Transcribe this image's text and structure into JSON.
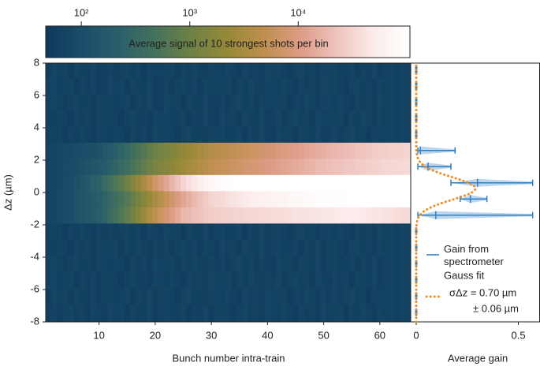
{
  "chart_data": [
    {
      "type": "heatmap",
      "xlabel": "Bunch number intra-train",
      "ylabel": "Δz (µm)",
      "x": [
        1,
        2,
        3,
        4,
        5,
        6,
        7,
        8,
        9,
        10,
        11,
        12,
        13,
        14,
        15,
        16,
        17,
        18,
        19,
        20,
        21,
        22,
        23,
        24,
        25,
        26,
        27,
        28,
        29,
        30,
        31,
        32,
        33,
        34,
        35,
        36,
        37,
        38,
        39,
        40,
        41,
        42,
        43,
        44,
        45,
        46,
        47,
        48,
        49,
        50,
        51,
        52,
        53,
        54,
        55,
        56,
        57,
        58,
        59,
        60,
        61,
        62,
        63,
        64,
        65
      ],
      "y_edges": [
        -8,
        -6.9,
        -5.9,
        -4.9,
        -3.9,
        -2.9,
        -1.9,
        -0.9,
        0.1,
        1.1,
        2.1,
        3.1,
        4.1,
        5.1,
        6.1,
        7.1,
        8
      ],
      "z": [
        [
          62,
          70,
          58,
          66,
          74,
          60,
          68,
          55,
          72,
          64,
          59,
          77,
          63,
          69,
          57,
          71,
          65,
          61,
          75,
          58,
          67,
          73,
          60,
          64,
          70,
          56,
          68,
          62,
          76,
          59,
          66,
          71,
          63,
          57,
          69,
          74,
          61,
          65,
          58,
          72,
          67,
          60,
          70,
          64,
          56,
          73,
          62,
          68,
          59,
          75,
          63,
          66,
          71,
          57,
          69,
          61,
          74,
          65,
          58,
          70,
          63,
          67,
          60,
          72,
          64
        ],
        [
          59,
          77,
          63,
          69,
          57,
          71,
          65,
          61,
          75,
          58,
          67,
          73,
          60,
          64,
          70,
          56,
          68,
          62,
          76,
          59,
          66,
          71,
          63,
          57,
          69,
          74,
          61,
          65,
          58,
          72,
          67,
          60,
          70,
          64,
          56,
          73,
          62,
          68,
          59,
          75,
          63,
          66,
          71,
          57,
          69,
          61,
          74,
          65,
          58,
          70,
          62,
          70,
          58,
          66,
          74,
          60,
          68,
          55,
          72,
          64,
          63,
          67,
          60,
          72,
          64
        ],
        [
          67,
          73,
          60,
          64,
          70,
          56,
          68,
          62,
          76,
          59,
          66,
          71,
          63,
          57,
          69,
          74,
          61,
          65,
          58,
          72,
          67,
          60,
          70,
          64,
          56,
          73,
          62,
          68,
          59,
          75,
          63,
          66,
          71,
          57,
          69,
          61,
          74,
          65,
          58,
          70,
          62,
          70,
          58,
          66,
          74,
          60,
          68,
          55,
          72,
          64,
          59,
          77,
          63,
          69,
          57,
          71,
          65,
          61,
          75,
          58,
          63,
          67,
          60,
          72,
          64
        ],
        [
          66,
          71,
          63,
          57,
          69,
          74,
          61,
          65,
          58,
          72,
          67,
          60,
          70,
          64,
          56,
          73,
          62,
          68,
          59,
          75,
          63,
          66,
          71,
          57,
          69,
          61,
          74,
          65,
          58,
          70,
          62,
          70,
          58,
          66,
          74,
          60,
          68,
          55,
          72,
          64,
          59,
          77,
          63,
          69,
          57,
          71,
          65,
          61,
          75,
          58,
          67,
          73,
          60,
          64,
          70,
          56,
          68,
          62,
          76,
          59,
          63,
          67,
          60,
          72,
          64
        ],
        [
          67,
          60,
          70,
          64,
          56,
          73,
          62,
          68,
          59,
          75,
          63,
          66,
          71,
          57,
          69,
          61,
          74,
          65,
          58,
          70,
          62,
          70,
          58,
          66,
          74,
          60,
          68,
          55,
          72,
          64,
          59,
          77,
          63,
          69,
          57,
          71,
          65,
          61,
          75,
          58,
          67,
          73,
          60,
          64,
          70,
          56,
          68,
          62,
          76,
          59,
          66,
          71,
          63,
          57,
          69,
          74,
          61,
          65,
          58,
          72,
          63,
          67,
          60,
          72,
          64
        ],
        [
          63,
          66,
          71,
          57,
          69,
          61,
          74,
          65,
          58,
          70,
          62,
          70,
          58,
          66,
          74,
          60,
          68,
          55,
          72,
          64,
          59,
          77,
          63,
          69,
          57,
          71,
          65,
          61,
          75,
          58,
          67,
          73,
          60,
          64,
          70,
          56,
          68,
          62,
          76,
          59,
          66,
          71,
          63,
          57,
          69,
          74,
          61,
          65,
          58,
          72,
          67,
          60,
          70,
          64,
          56,
          73,
          62,
          68,
          59,
          75,
          63,
          67,
          60,
          72,
          64
        ],
        [
          71,
          79,
          89,
          100,
          112,
          126,
          141,
          158,
          178,
          200,
          263,
          347,
          457,
          603,
          794,
          1150,
          1660,
          2400,
          3470,
          5010,
          6460,
          8320,
          10700,
          13800,
          17800,
          19500,
          21400,
          23400,
          25700,
          28200,
          28800,
          29500,
          30200,
          30900,
          31600,
          32400,
          33100,
          33900,
          34700,
          35500,
          36300,
          37200,
          38000,
          38900,
          39800,
          40700,
          41700,
          42700,
          43700,
          44700,
          45700,
          46800,
          47900,
          49000,
          50100,
          48400,
          46800,
          45200,
          43700,
          42200,
          40700,
          39400,
          38000,
          36700,
          35500
        ],
        [
          71,
          79,
          89,
          100,
          112,
          126,
          141,
          158,
          178,
          200,
          251,
          316,
          398,
          501,
          631,
          871,
          1200,
          1660,
          2290,
          3160,
          4170,
          5500,
          7240,
          9550,
          12600,
          15100,
          18200,
          21900,
          26300,
          31600,
          33900,
          36300,
          38900,
          41700,
          44700,
          47900,
          51300,
          55000,
          58900,
          63100,
          66100,
          69200,
          72400,
          75900,
          79400,
          83200,
          87100,
          91200,
          95500,
          100000,
          101000,
          102000,
          103000,
          104000,
          105000,
          106000,
          106000,
          107000,
          108000,
          109000,
          109000,
          110000,
          111000,
          111000,
          112000
        ],
        [
          71,
          77,
          84,
          92,
          100,
          120,
          145,
          174,
          209,
          251,
          331,
          437,
          575,
          759,
          1000,
          1480,
          2190,
          3240,
          4790,
          7080,
          9550,
          12900,
          17400,
          23400,
          31600,
          38000,
          45700,
          55000,
          66100,
          79400,
          85100,
          91200,
          97700,
          105000,
          112000,
          115000,
          117000,
          118000,
          119000,
          120000,
          121000,
          122000,
          123000,
          124000,
          125000,
          125000,
          126000,
          126000,
          125000,
          126000,
          127000,
          126000,
          125000,
          126000,
          127000,
          126000,
          125000,
          126000,
          126000,
          127000,
          126000,
          125000,
          126000,
          127000,
          126000
        ],
        [
          71,
          78,
          85,
          93,
          102,
          110,
          120,
          132,
          145,
          158,
          191,
          229,
          275,
          331,
          398,
          501,
          631,
          794,
          1000,
          1259,
          1450,
          1660,
          1910,
          2190,
          2510,
          2880,
          3310,
          3800,
          4370,
          5010,
          5370,
          5750,
          6170,
          6610,
          7080,
          7590,
          8130,
          8710,
          9330,
          10000,
          10700,
          11500,
          12300,
          13200,
          14100,
          15100,
          16200,
          17400,
          18600,
          20000,
          20900,
          21900,
          22900,
          24000,
          25100,
          26300,
          27500,
          28800,
          30200,
          31600,
          32400,
          33100,
          33900,
          34700,
          35500
        ],
        [
          71,
          76,
          81,
          85,
          91,
          98,
          105,
          110,
          117,
          126,
          151,
          182,
          219,
          263,
          316,
          398,
          501,
          631,
          794,
          1000,
          1150,
          1320,
          1510,
          1740,
          2000,
          2290,
          2630,
          3020,
          3470,
          3980,
          4270,
          4570,
          4900,
          5250,
          5620,
          6030,
          6460,
          6920,
          7410,
          7940,
          8510,
          9120,
          9770,
          10500,
          11200,
          12000,
          12900,
          13800,
          14800,
          15800,
          16800,
          17800,
          18800,
          20000,
          21100,
          22400,
          23700,
          25100,
          26600,
          28200,
          28800,
          29500,
          30200,
          30900,
          31600
        ],
        [
          63,
          66,
          71,
          57,
          69,
          61,
          74,
          65,
          58,
          70,
          67,
          60,
          70,
          64,
          56,
          73,
          62,
          68,
          59,
          75,
          66,
          71,
          63,
          57,
          69,
          74,
          61,
          65,
          58,
          72,
          67,
          73,
          60,
          64,
          70,
          56,
          68,
          62,
          76,
          59,
          59,
          77,
          63,
          69,
          57,
          71,
          65,
          61,
          75,
          58,
          62,
          70,
          58,
          66,
          74,
          60,
          68,
          55,
          72,
          64,
          63,
          67,
          60,
          72,
          64
        ],
        [
          67,
          60,
          70,
          64,
          56,
          73,
          62,
          68,
          59,
          75,
          66,
          71,
          63,
          57,
          69,
          74,
          61,
          65,
          58,
          72,
          67,
          73,
          60,
          64,
          70,
          56,
          68,
          62,
          76,
          59,
          59,
          77,
          63,
          69,
          57,
          71,
          65,
          61,
          75,
          58,
          62,
          70,
          58,
          66,
          74,
          60,
          68,
          55,
          72,
          64,
          63,
          66,
          71,
          57,
          69,
          61,
          74,
          65,
          58,
          70,
          63,
          67,
          60,
          72,
          64
        ],
        [
          66,
          71,
          63,
          57,
          69,
          74,
          61,
          65,
          58,
          72,
          67,
          73,
          60,
          64,
          70,
          56,
          68,
          62,
          76,
          59,
          59,
          77,
          63,
          69,
          57,
          71,
          65,
          61,
          75,
          58,
          62,
          70,
          58,
          66,
          74,
          60,
          68,
          55,
          72,
          64,
          63,
          66,
          71,
          57,
          69,
          61,
          74,
          65,
          58,
          70,
          67,
          60,
          70,
          64,
          56,
          73,
          62,
          68,
          59,
          75,
          63,
          67,
          60,
          72,
          64
        ],
        [
          67,
          73,
          60,
          64,
          70,
          56,
          68,
          62,
          76,
          59,
          59,
          77,
          63,
          69,
          57,
          71,
          65,
          61,
          75,
          58,
          62,
          70,
          58,
          66,
          74,
          60,
          68,
          55,
          72,
          64,
          63,
          66,
          71,
          57,
          69,
          61,
          74,
          65,
          58,
          70,
          67,
          60,
          70,
          64,
          56,
          73,
          62,
          68,
          59,
          75,
          66,
          71,
          63,
          57,
          69,
          74,
          61,
          65,
          58,
          72,
          63,
          67,
          60,
          72,
          64
        ],
        [
          59,
          77,
          63,
          69,
          57,
          71,
          65,
          61,
          75,
          58,
          62,
          70,
          58,
          66,
          74,
          60,
          68,
          55,
          72,
          64,
          63,
          66,
          71,
          57,
          69,
          61,
          74,
          65,
          58,
          70,
          67,
          60,
          70,
          64,
          56,
          73,
          62,
          68,
          59,
          75,
          66,
          71,
          63,
          57,
          69,
          74,
          61,
          65,
          58,
          72,
          67,
          73,
          60,
          64,
          70,
          56,
          68,
          62,
          76,
          59,
          63,
          67,
          60,
          72,
          64
        ]
      ],
      "xlim": [
        0.5,
        65.5
      ],
      "ylim": [
        -8,
        8
      ],
      "xticks": [
        10,
        20,
        30,
        40,
        50,
        60
      ],
      "yticks": [
        -8,
        -6,
        -4,
        -2,
        0,
        2,
        4,
        6,
        8
      ],
      "colorbar": {
        "label": "Average signal of 10 strongest shots per bin",
        "scale": "log",
        "lim": [
          47,
          107000
        ],
        "ticks": [
          {
            "value": 100,
            "label": "10²"
          },
          {
            "value": 1000,
            "label": "10³"
          },
          {
            "value": 10000,
            "label": "10⁴"
          }
        ],
        "colormap": [
          "#0e3a5c",
          "#1b4c68",
          "#2a5f6a",
          "#45725c",
          "#6f8145",
          "#968938",
          "#bf8f4e",
          "#dd9c86",
          "#efc3bd",
          "#fbeceb",
          "#ffffff"
        ]
      }
    },
    {
      "type": "errorbar",
      "xlabel": "Average gain",
      "xlim": [
        -0.027,
        0.604
      ],
      "xticks": [
        0,
        0.5
      ],
      "ylim": [
        -8,
        8
      ],
      "legend": "lower right",
      "series": [
        {
          "name": "Gain from spectrometer",
          "color": "#2f7fc1",
          "fill": "#a9cbe8",
          "y": [
            -7.4,
            -6.4,
            -5.4,
            -4.4,
            -3.4,
            -2.4,
            -1.4,
            -0.4,
            0.6,
            1.6,
            2.6,
            3.6,
            4.6,
            5.6,
            6.6,
            7.6
          ],
          "values": [
            0,
            0,
            0,
            0,
            0,
            0,
            0.096,
            0.265,
            0.3,
            0.058,
            0.02,
            0,
            0,
            0,
            0,
            0
          ],
          "lower": [
            -0.003,
            -0.003,
            -0.003,
            -0.003,
            -0.003,
            -0.003,
            0.008,
            0.215,
            0.17,
            0.008,
            0.008,
            -0.003,
            -0.003,
            -0.003,
            -0.003,
            -0.003
          ],
          "upper": [
            0.003,
            0.003,
            0.003,
            0.003,
            0.003,
            0.003,
            0.57,
            0.346,
            0.57,
            0.17,
            0.19,
            0.003,
            0.003,
            0.003,
            0.003,
            0.003
          ]
        },
        {
          "name": "Gauss fit",
          "color": "#f28a1e",
          "style": "dotted",
          "amplitude": 0.29,
          "center": 0.25,
          "sigma": 0.7,
          "annotation": [
            "σΔz = 0.70 µm",
            "± 0.06 µm"
          ]
        }
      ]
    }
  ]
}
